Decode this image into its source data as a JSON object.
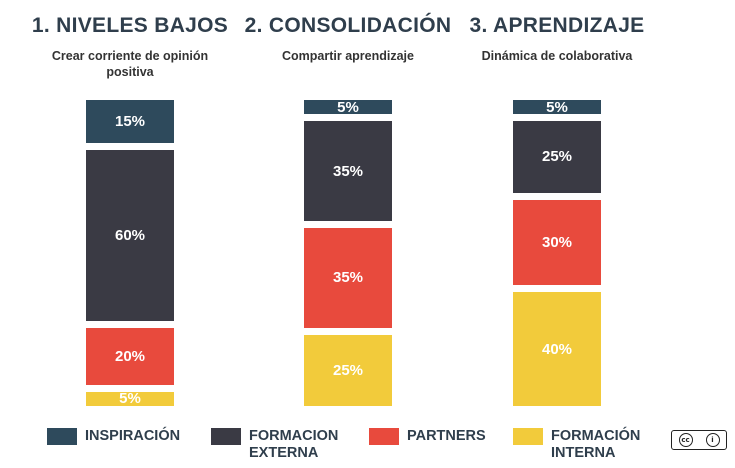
{
  "chart_data": {
    "type": "bar",
    "stacked": true,
    "normalized": true,
    "columns": [
      {
        "title": "1. NIVELES BAJOS",
        "subtitle": "Crear corriente de opinión positiva",
        "segments": [
          {
            "series": "INSPIRACIÓN",
            "value": 15,
            "label": "15%"
          },
          {
            "series": "FORMACION EXTERNA",
            "value": 60,
            "label": "60%"
          },
          {
            "series": "PARTNERS",
            "value": 20,
            "label": "20%"
          },
          {
            "series": "FORMACIÓN INTERNA",
            "value": 5,
            "label": "5%"
          }
        ]
      },
      {
        "title": "2. CONSOLIDACIÓN",
        "subtitle": "Compartir aprendizaje",
        "segments": [
          {
            "series": "INSPIRACIÓN",
            "value": 5,
            "label": "5%"
          },
          {
            "series": "FORMACION EXTERNA",
            "value": 35,
            "label": "35%"
          },
          {
            "series": "PARTNERS",
            "value": 35,
            "label": "35%"
          },
          {
            "series": "FORMACIÓN INTERNA",
            "value": 25,
            "label": "25%"
          }
        ]
      },
      {
        "title": "3. APRENDIZAJE",
        "subtitle": "Dinámica de colaborativa",
        "segments": [
          {
            "series": "INSPIRACIÓN",
            "value": 5,
            "label": "5%"
          },
          {
            "series": "FORMACION EXTERNA",
            "value": 25,
            "label": "25%"
          },
          {
            "series": "PARTNERS",
            "value": 30,
            "label": "30%"
          },
          {
            "series": "FORMACIÓN INTERNA",
            "value": 40,
            "label": "40%"
          }
        ]
      }
    ],
    "legend": [
      {
        "name": "INSPIRACIÓN",
        "color": "#2e4a5c"
      },
      {
        "name": "FORMACION EXTERNA",
        "color": "#3a3a44"
      },
      {
        "name": "PARTNERS",
        "color": "#e84a3d"
      },
      {
        "name": "FORMACIÓN INTERNA",
        "color": "#f2cb3b"
      }
    ],
    "legend_position": "bottom"
  },
  "license_badge": {
    "icons": [
      "cc",
      "by"
    ]
  }
}
